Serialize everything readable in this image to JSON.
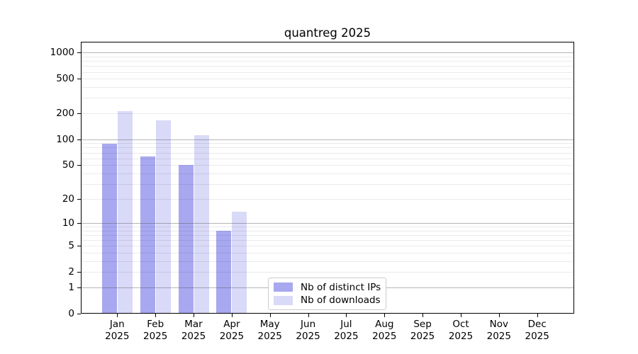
{
  "title": "quantreg 2025",
  "chart_data": {
    "type": "bar",
    "title": "quantreg 2025",
    "categories": [
      "Jan 2025",
      "Feb 2025",
      "Mar 2025",
      "Apr 2025",
      "May 2025",
      "Jun 2025",
      "Jul 2025",
      "Aug 2025",
      "Sep 2025",
      "Oct 2025",
      "Nov 2025",
      "Dec 2025"
    ],
    "series": [
      {
        "name": "Nb of distinct IPs",
        "color": "#a8a8f0",
        "values": [
          88,
          63,
          50,
          8,
          0,
          0,
          0,
          0,
          0,
          0,
          0,
          0
        ]
      },
      {
        "name": "Nb of downloads",
        "color": "#d9d9f8",
        "values": [
          210,
          165,
          111,
          14,
          0,
          0,
          0,
          0,
          0,
          0,
          0,
          0
        ]
      }
    ],
    "y_ticks": [
      0,
      1,
      2,
      5,
      10,
      20,
      50,
      100,
      200,
      500,
      1000
    ],
    "y_scale": "log10(1+v)",
    "ylim": [
      0,
      1300
    ],
    "xlabel": "",
    "ylabel": "",
    "grid": "on",
    "grid_major_values": [
      1,
      10,
      100,
      1000
    ],
    "legend_position": "inside-bottom-center",
    "colors": {
      "major_grid": "#b0b0b0",
      "minor_grid": "#e8e8e8",
      "spine": "#000000",
      "text": "#000000",
      "background": "#ffffff"
    }
  }
}
